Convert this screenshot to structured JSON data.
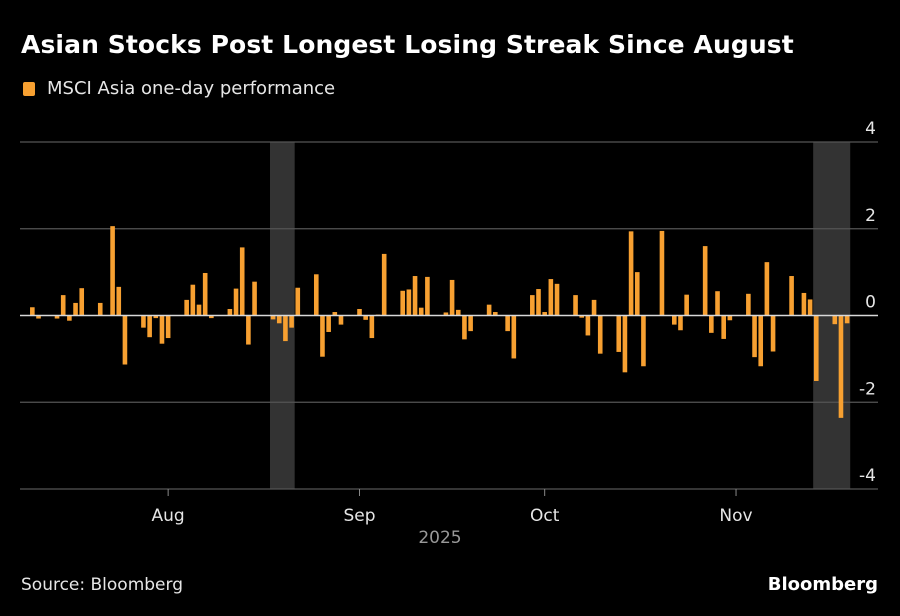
{
  "header": {
    "title": "Asian Stocks Post Longest Losing Streak Since August"
  },
  "footer": {
    "source": "Source: Bloomberg",
    "logo": "Bloomberg"
  },
  "colors": {
    "background": "#000000",
    "bar": "#f7a031",
    "shade": "#333333",
    "grid": "#555555",
    "zero_line": "#d9d9d9"
  },
  "chart_data": {
    "type": "bar",
    "title": "Asian Stocks Post Longest Losing Streak Since August",
    "legend": {
      "position": "top-left",
      "entries": [
        "MSCI Asia one-day performance"
      ]
    },
    "series": [
      {
        "name": "MSCI Asia one-day performance"
      }
    ],
    "xlabel": "2025",
    "ylabel": "",
    "xlim": [
      "2025-07-08",
      "2025-11-24"
    ],
    "ylim": [
      -4,
      4
    ],
    "yticks": [
      4,
      2,
      0,
      -2,
      -4
    ],
    "xticks": [
      {
        "date": "2025-08-01",
        "label": "Aug"
      },
      {
        "date": "2025-09-01",
        "label": "Sep"
      },
      {
        "date": "2025-10-01",
        "label": "Oct"
      },
      {
        "date": "2025-11-01",
        "label": "Nov"
      }
    ],
    "year_label": "2025",
    "grid": true,
    "shaded_periods": [
      [
        "2025-08-18",
        "2025-08-21"
      ],
      [
        "2025-11-14",
        "2025-11-19"
      ]
    ],
    "points": [
      [
        "2025-07-10",
        0.19
      ],
      [
        "2025-07-11",
        -0.07
      ],
      [
        "2025-07-14",
        -0.07
      ],
      [
        "2025-07-15",
        0.47
      ],
      [
        "2025-07-16",
        -0.12
      ],
      [
        "2025-07-17",
        0.29
      ],
      [
        "2025-07-18",
        0.63
      ],
      [
        "2025-07-21",
        0.29
      ],
      [
        "2025-07-22",
        0.01
      ],
      [
        "2025-07-23",
        2.06
      ],
      [
        "2025-07-24",
        0.66
      ],
      [
        "2025-07-25",
        -1.13
      ],
      [
        "2025-07-28",
        -0.28
      ],
      [
        "2025-07-29",
        -0.5
      ],
      [
        "2025-07-30",
        -0.06
      ],
      [
        "2025-07-31",
        -0.65
      ],
      [
        "2025-08-01",
        -0.52
      ],
      [
        "2025-08-04",
        0.36
      ],
      [
        "2025-08-05",
        0.71
      ],
      [
        "2025-08-06",
        0.25
      ],
      [
        "2025-08-07",
        0.98
      ],
      [
        "2025-08-08",
        -0.06
      ],
      [
        "2025-08-11",
        0.15
      ],
      [
        "2025-08-12",
        0.62
      ],
      [
        "2025-08-13",
        1.57
      ],
      [
        "2025-08-14",
        -0.67
      ],
      [
        "2025-08-15",
        0.78
      ],
      [
        "2025-08-18",
        -0.09
      ],
      [
        "2025-08-19",
        -0.18
      ],
      [
        "2025-08-20",
        -0.59
      ],
      [
        "2025-08-21",
        -0.28
      ],
      [
        "2025-08-22",
        0.64
      ],
      [
        "2025-08-25",
        0.95
      ],
      [
        "2025-08-26",
        -0.95
      ],
      [
        "2025-08-27",
        -0.38
      ],
      [
        "2025-08-28",
        0.08
      ],
      [
        "2025-08-29",
        -0.21
      ],
      [
        "2025-09-01",
        0.15
      ],
      [
        "2025-09-02",
        -0.1
      ],
      [
        "2025-09-03",
        -0.52
      ],
      [
        "2025-09-04",
        0.02
      ],
      [
        "2025-09-05",
        1.42
      ],
      [
        "2025-09-08",
        0.57
      ],
      [
        "2025-09-09",
        0.6
      ],
      [
        "2025-09-10",
        0.91
      ],
      [
        "2025-09-11",
        0.18
      ],
      [
        "2025-09-12",
        0.89
      ],
      [
        "2025-09-15",
        0.07
      ],
      [
        "2025-09-16",
        0.82
      ],
      [
        "2025-09-17",
        0.13
      ],
      [
        "2025-09-18",
        -0.55
      ],
      [
        "2025-09-19",
        -0.36
      ],
      [
        "2025-09-22",
        0.25
      ],
      [
        "2025-09-23",
        0.08
      ],
      [
        "2025-09-25",
        -0.36
      ],
      [
        "2025-09-26",
        -0.99
      ],
      [
        "2025-09-29",
        0.47
      ],
      [
        "2025-09-30",
        0.61
      ],
      [
        "2025-10-01",
        0.08
      ],
      [
        "2025-10-02",
        0.84
      ],
      [
        "2025-10-03",
        0.73
      ],
      [
        "2025-10-06",
        0.47
      ],
      [
        "2025-10-07",
        -0.05
      ],
      [
        "2025-10-08",
        -0.46
      ],
      [
        "2025-10-09",
        0.36
      ],
      [
        "2025-10-10",
        -0.88
      ],
      [
        "2025-10-13",
        -0.84
      ],
      [
        "2025-10-14",
        -1.31
      ],
      [
        "2025-10-15",
        1.94
      ],
      [
        "2025-10-16",
        1.0
      ],
      [
        "2025-10-17",
        -1.17
      ],
      [
        "2025-10-20",
        1.95
      ],
      [
        "2025-10-22",
        -0.21
      ],
      [
        "2025-10-23",
        -0.34
      ],
      [
        "2025-10-24",
        0.48
      ],
      [
        "2025-10-27",
        1.6
      ],
      [
        "2025-10-28",
        -0.4
      ],
      [
        "2025-10-29",
        0.56
      ],
      [
        "2025-10-30",
        -0.54
      ],
      [
        "2025-10-31",
        -0.11
      ],
      [
        "2025-11-03",
        0.5
      ],
      [
        "2025-11-04",
        -0.96
      ],
      [
        "2025-11-05",
        -1.17
      ],
      [
        "2025-11-06",
        1.23
      ],
      [
        "2025-11-07",
        -0.83
      ],
      [
        "2025-11-10",
        0.91
      ],
      [
        "2025-11-11",
        0.01
      ],
      [
        "2025-11-12",
        0.52
      ],
      [
        "2025-11-13",
        0.37
      ],
      [
        "2025-11-14",
        -1.51
      ],
      [
        "2025-11-17",
        -0.2
      ],
      [
        "2025-11-18",
        -2.36
      ],
      [
        "2025-11-19",
        -0.18
      ]
    ]
  }
}
